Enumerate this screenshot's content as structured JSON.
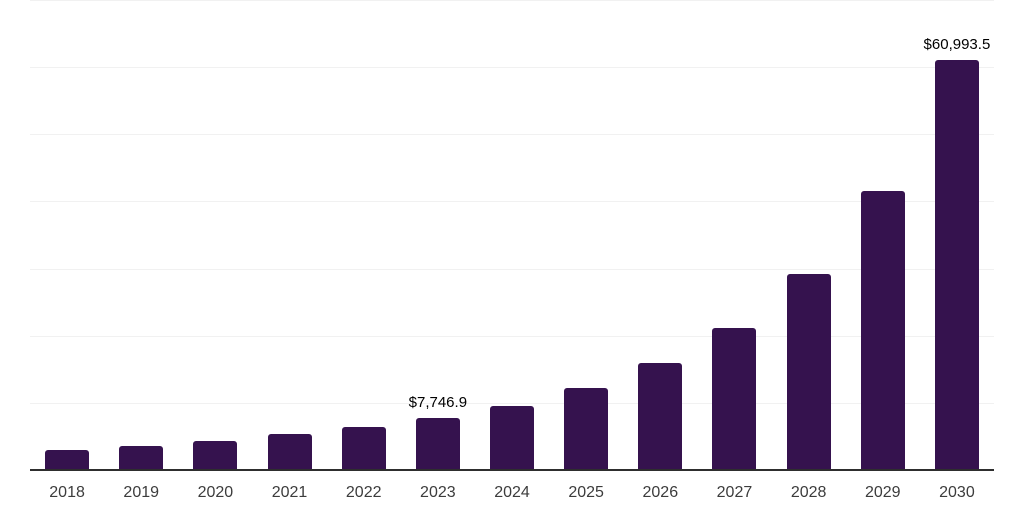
{
  "chart": {
    "bar_color": "#35124E",
    "gridline_color": "#f1f1f1",
    "axis_color": "#2e2e2e",
    "value_label_color": "#000000",
    "tick_label_color": "#3c3c3c"
  },
  "chart_data": {
    "type": "bar",
    "title": "",
    "xlabel": "",
    "ylabel": "",
    "categories": [
      "2018",
      "2019",
      "2020",
      "2021",
      "2022",
      "2023",
      "2024",
      "2025",
      "2026",
      "2027",
      "2028",
      "2029",
      "2030"
    ],
    "values": [
      2980,
      3570,
      4310,
      5360,
      6400,
      7746.9,
      9520,
      12240,
      15870,
      21170,
      29260,
      41500,
      60993.5
    ],
    "annotations": [
      {
        "category": "2023",
        "text": "$7,746.9"
      },
      {
        "category": "2030",
        "text": "$60,993.5"
      }
    ],
    "ylim": [
      0,
      70000
    ],
    "gridline_step": 10000,
    "grid": true,
    "legend": false,
    "y_axis_ticks_visible": false
  }
}
